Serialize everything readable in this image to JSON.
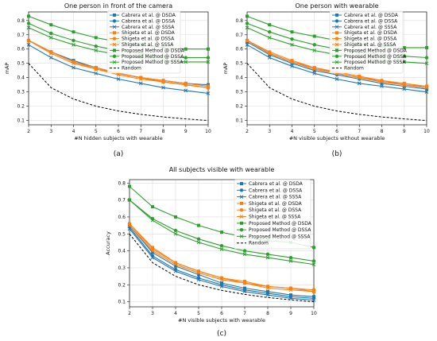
{
  "captions": [
    "(a)",
    "(b)",
    "(c)"
  ],
  "chart_data": [
    {
      "type": "line",
      "title": "One person in front of the camera",
      "xlabel": "#N hidden subjects with wearable",
      "ylabel": "mAP",
      "x": [
        2,
        3,
        4,
        5,
        6,
        7,
        8,
        9,
        10
      ],
      "xlim": [
        2,
        10
      ],
      "ylim": [
        0.07,
        0.86
      ],
      "yticks": [
        0.1,
        0.2,
        0.3,
        0.4,
        0.5,
        0.6,
        0.7,
        0.8
      ],
      "grid": true,
      "legend": "top-right",
      "series": [
        {
          "name": "Cabrera et al. @ DSDA",
          "color": "#1f77b4",
          "marker": "square",
          "dash": false,
          "values": [
            0.66,
            0.58,
            0.52,
            0.47,
            0.43,
            0.4,
            0.38,
            0.36,
            0.35
          ]
        },
        {
          "name": "Cabrera et al. @ DSSA",
          "color": "#1f77b4",
          "marker": "circle",
          "dash": false,
          "values": [
            0.66,
            0.58,
            0.51,
            0.47,
            0.43,
            0.4,
            0.37,
            0.35,
            0.33
          ]
        },
        {
          "name": "Cabrera et al. @ SSSA",
          "color": "#1f77b4",
          "marker": "x",
          "dash": false,
          "values": [
            0.63,
            0.54,
            0.47,
            0.43,
            0.39,
            0.36,
            0.33,
            0.31,
            0.29
          ]
        },
        {
          "name": "Shigeta et al. @ DSDA",
          "color": "#ff7f0e",
          "marker": "square",
          "dash": false,
          "values": [
            0.66,
            0.58,
            0.51,
            0.47,
            0.43,
            0.4,
            0.38,
            0.36,
            0.34
          ]
        },
        {
          "name": "Shigeta et al. @ DSSA",
          "color": "#ff7f0e",
          "marker": "circle",
          "dash": false,
          "values": [
            0.66,
            0.58,
            0.51,
            0.46,
            0.43,
            0.4,
            0.37,
            0.35,
            0.33
          ]
        },
        {
          "name": "Shigeta et al. @ SSSA",
          "color": "#ff7f0e",
          "marker": "x",
          "dash": false,
          "values": [
            0.66,
            0.57,
            0.5,
            0.46,
            0.42,
            0.39,
            0.37,
            0.35,
            0.33
          ]
        },
        {
          "name": "Proposed Method @ DSDA",
          "color": "#2ca02c",
          "marker": "square",
          "dash": false,
          "values": [
            0.83,
            0.77,
            0.72,
            0.68,
            0.65,
            0.63,
            0.61,
            0.6,
            0.6
          ]
        },
        {
          "name": "Proposed Method @ DSSA",
          "color": "#2ca02c",
          "marker": "circle",
          "dash": false,
          "values": [
            0.78,
            0.71,
            0.66,
            0.62,
            0.59,
            0.57,
            0.55,
            0.54,
            0.54
          ]
        },
        {
          "name": "Proposed Method @ SSSA",
          "color": "#2ca02c",
          "marker": "x",
          "dash": false,
          "values": [
            0.75,
            0.68,
            0.63,
            0.59,
            0.56,
            0.54,
            0.52,
            0.51,
            0.51
          ]
        },
        {
          "name": "Random",
          "color": "#000000",
          "marker": "none",
          "dash": true,
          "values": [
            0.5,
            0.33,
            0.25,
            0.2,
            0.167,
            0.143,
            0.125,
            0.111,
            0.1
          ]
        }
      ]
    },
    {
      "type": "line",
      "title": "One person with wearable",
      "xlabel": "#N visible subjects without wearable",
      "ylabel": "mAP",
      "x": [
        2,
        3,
        4,
        5,
        6,
        7,
        8,
        9,
        10
      ],
      "xlim": [
        2,
        10
      ],
      "ylim": [
        0.07,
        0.86
      ],
      "yticks": [
        0.1,
        0.2,
        0.3,
        0.4,
        0.5,
        0.6,
        0.7,
        0.8
      ],
      "grid": true,
      "legend": "top-right",
      "series": [
        {
          "name": "Cabrera et al. @ DSDA",
          "color": "#1f77b4",
          "marker": "square",
          "dash": false,
          "values": [
            0.66,
            0.57,
            0.51,
            0.46,
            0.43,
            0.4,
            0.37,
            0.35,
            0.33
          ]
        },
        {
          "name": "Cabrera et al. @ DSSA",
          "color": "#1f77b4",
          "marker": "circle",
          "dash": false,
          "values": [
            0.65,
            0.56,
            0.5,
            0.45,
            0.42,
            0.39,
            0.36,
            0.34,
            0.32
          ]
        },
        {
          "name": "Cabrera et al. @ SSSA",
          "color": "#1f77b4",
          "marker": "x",
          "dash": false,
          "values": [
            0.63,
            0.54,
            0.48,
            0.43,
            0.39,
            0.36,
            0.34,
            0.32,
            0.3
          ]
        },
        {
          "name": "Shigeta et al. @ DSDA",
          "color": "#ff7f0e",
          "marker": "square",
          "dash": false,
          "values": [
            0.66,
            0.58,
            0.52,
            0.47,
            0.44,
            0.41,
            0.38,
            0.36,
            0.34
          ]
        },
        {
          "name": "Shigeta et al. @ DSSA",
          "color": "#ff7f0e",
          "marker": "circle",
          "dash": false,
          "values": [
            0.66,
            0.57,
            0.51,
            0.47,
            0.43,
            0.4,
            0.38,
            0.35,
            0.34
          ]
        },
        {
          "name": "Shigeta et al. @ SSSA",
          "color": "#ff7f0e",
          "marker": "x",
          "dash": false,
          "values": [
            0.66,
            0.57,
            0.51,
            0.46,
            0.43,
            0.4,
            0.37,
            0.35,
            0.33
          ]
        },
        {
          "name": "Proposed Method @ DSDA",
          "color": "#2ca02c",
          "marker": "square",
          "dash": false,
          "values": [
            0.83,
            0.77,
            0.72,
            0.69,
            0.66,
            0.64,
            0.62,
            0.61,
            0.61
          ]
        },
        {
          "name": "Proposed Method @ DSSA",
          "color": "#2ca02c",
          "marker": "circle",
          "dash": false,
          "values": [
            0.78,
            0.72,
            0.67,
            0.63,
            0.6,
            0.58,
            0.56,
            0.55,
            0.54
          ]
        },
        {
          "name": "Proposed Method @ SSSA",
          "color": "#2ca02c",
          "marker": "x",
          "dash": false,
          "values": [
            0.75,
            0.68,
            0.63,
            0.59,
            0.56,
            0.54,
            0.52,
            0.51,
            0.5
          ]
        },
        {
          "name": "Random",
          "color": "#000000",
          "marker": "none",
          "dash": true,
          "values": [
            0.5,
            0.33,
            0.25,
            0.2,
            0.167,
            0.143,
            0.125,
            0.111,
            0.1
          ]
        }
      ]
    },
    {
      "type": "line",
      "title": "All subjects visible with wearable",
      "xlabel": "#N visible subjects with wearable",
      "ylabel": "Accuracy",
      "x": [
        2,
        3,
        4,
        5,
        6,
        7,
        8,
        9,
        10
      ],
      "xlim": [
        2,
        10
      ],
      "ylim": [
        0.07,
        0.82
      ],
      "yticks": [
        0.1,
        0.2,
        0.3,
        0.4,
        0.5,
        0.6,
        0.7,
        0.8
      ],
      "grid": true,
      "legend": "top-right",
      "series": [
        {
          "name": "Cabrera et al. @ DSDA",
          "color": "#1f77b4",
          "marker": "square",
          "dash": false,
          "values": [
            0.55,
            0.39,
            0.31,
            0.26,
            0.21,
            0.18,
            0.16,
            0.14,
            0.13
          ]
        },
        {
          "name": "Cabrera et al. @ DSSA",
          "color": "#1f77b4",
          "marker": "circle",
          "dash": false,
          "values": [
            0.54,
            0.37,
            0.29,
            0.24,
            0.2,
            0.17,
            0.15,
            0.13,
            0.12
          ]
        },
        {
          "name": "Cabrera et al. @ SSSA",
          "color": "#1f77b4",
          "marker": "x",
          "dash": false,
          "values": [
            0.53,
            0.36,
            0.28,
            0.23,
            0.19,
            0.16,
            0.14,
            0.12,
            0.11
          ]
        },
        {
          "name": "Shigeta et al. @ DSDA",
          "color": "#ff7f0e",
          "marker": "square",
          "dash": false,
          "values": [
            0.56,
            0.42,
            0.33,
            0.28,
            0.24,
            0.22,
            0.19,
            0.18,
            0.17
          ]
        },
        {
          "name": "Shigeta et al. @ DSSA",
          "color": "#ff7f0e",
          "marker": "circle",
          "dash": false,
          "values": [
            0.56,
            0.41,
            0.33,
            0.28,
            0.24,
            0.21,
            0.19,
            0.18,
            0.16
          ]
        },
        {
          "name": "Shigeta et al. @ SSSA",
          "color": "#ff7f0e",
          "marker": "x",
          "dash": false,
          "values": [
            0.55,
            0.4,
            0.32,
            0.27,
            0.23,
            0.21,
            0.18,
            0.17,
            0.16
          ]
        },
        {
          "name": "Proposed Method @ DSDA",
          "color": "#2ca02c",
          "marker": "square",
          "dash": false,
          "values": [
            0.78,
            0.66,
            0.6,
            0.55,
            0.51,
            0.48,
            0.46,
            0.45,
            0.42
          ]
        },
        {
          "name": "Proposed Method @ DSSA",
          "color": "#2ca02c",
          "marker": "circle",
          "dash": false,
          "values": [
            0.7,
            0.59,
            0.52,
            0.47,
            0.43,
            0.4,
            0.38,
            0.36,
            0.34
          ]
        },
        {
          "name": "Proposed Method @ SSSA",
          "color": "#2ca02c",
          "marker": "x",
          "dash": false,
          "values": [
            0.7,
            0.58,
            0.5,
            0.45,
            0.41,
            0.38,
            0.36,
            0.34,
            0.32
          ]
        },
        {
          "name": "Random",
          "color": "#000000",
          "marker": "none",
          "dash": true,
          "values": [
            0.5,
            0.33,
            0.25,
            0.2,
            0.167,
            0.143,
            0.125,
            0.111,
            0.1
          ]
        }
      ]
    }
  ]
}
